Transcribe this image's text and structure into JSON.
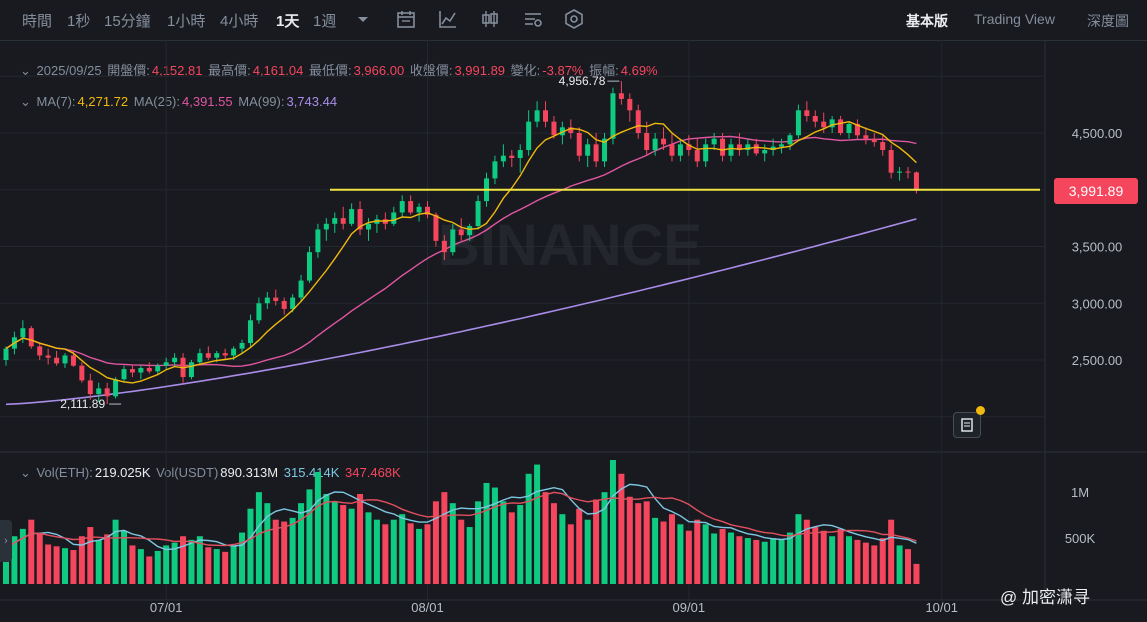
{
  "toolbar": {
    "timeframes": [
      "時間",
      "1秒",
      "15分鐘",
      "1小時",
      "4小時",
      "1天",
      "1週"
    ],
    "active_timeframe": "1天",
    "views": [
      "基本版",
      "Trading View",
      "深度圖"
    ],
    "active_view": "基本版"
  },
  "ohlc": {
    "date": "2025/09/25",
    "open_label": "開盤價:",
    "open": "4,152.81",
    "high_label": "最高價:",
    "high": "4,161.04",
    "low_label": "最低價:",
    "low": "3,966.00",
    "close_label": "收盤價:",
    "close": "3,991.89",
    "change_label": "變化:",
    "change": "-3.87%",
    "amplitude_label": "振幅:",
    "amplitude": "4.69%"
  },
  "ma": {
    "ma7_label": "MA(7):",
    "ma7": "4,271.72",
    "ma25_label": "MA(25):",
    "ma25": "4,391.55",
    "ma99_label": "MA(99):",
    "ma99": "3,743.44"
  },
  "vol": {
    "eth_label": "Vol(ETH):",
    "eth": "219.025K",
    "usdt_label": "Vol(USDT)",
    "usdt": "890.313M",
    "ma1": "315.414K",
    "ma2": "347.468K"
  },
  "watermark_text": "BINANCE",
  "credit": "@ 加密潇寻",
  "colors": {
    "up": "#0ecb81",
    "down": "#f6465d",
    "ma7": "#f0b90b",
    "ma25": "#e056a0",
    "ma99": "#a98ce8",
    "level": "#f0e442",
    "vol_ma1": "#7ec8e3",
    "vol_ma2": "#e0505e"
  },
  "chart_data": {
    "type": "candlestick",
    "symbol_note": "ETH/USDT daily",
    "y_ticks": [
      "4,500.00",
      "3,500.00",
      "3,000.00",
      "2,500.00"
    ],
    "y_tick_values": [
      4500,
      3500,
      3000,
      2500
    ],
    "ylim": [
      2000,
      5150
    ],
    "x_ticks": [
      "07/01",
      "08/01",
      "09/01",
      "10/01"
    ],
    "x_tick_index": [
      19,
      50,
      81,
      111
    ],
    "current_price": "3,991.89",
    "horizontal_level": 4000,
    "high_marker": "4,956.78",
    "high_marker_index": 73,
    "low_marker": "2,111.89",
    "low_marker_index": 12,
    "vol_ticks": [
      "1M",
      "500K"
    ],
    "vol_tick_values": [
      1000000,
      500000
    ],
    "vol_max": 1350000,
    "candles": [
      [
        2500,
        2620,
        2450,
        2600,
        380000
      ],
      [
        2600,
        2750,
        2550,
        2700,
        520000
      ],
      [
        2700,
        2850,
        2650,
        2780,
        600000
      ],
      [
        2780,
        2800,
        2600,
        2620,
        700000
      ],
      [
        2620,
        2650,
        2500,
        2540,
        560000
      ],
      [
        2540,
        2600,
        2460,
        2520,
        430000
      ],
      [
        2520,
        2580,
        2450,
        2470,
        410000
      ],
      [
        2470,
        2560,
        2430,
        2540,
        390000
      ],
      [
        2540,
        2580,
        2440,
        2450,
        370000
      ],
      [
        2450,
        2480,
        2300,
        2320,
        520000
      ],
      [
        2320,
        2380,
        2150,
        2200,
        620000
      ],
      [
        2200,
        2300,
        2130,
        2250,
        480000
      ],
      [
        2250,
        2300,
        2112,
        2180,
        540000
      ],
      [
        2180,
        2350,
        2160,
        2330,
        700000
      ],
      [
        2330,
        2450,
        2300,
        2420,
        580000
      ],
      [
        2420,
        2460,
        2350,
        2390,
        420000
      ],
      [
        2390,
        2450,
        2330,
        2430,
        380000
      ],
      [
        2430,
        2480,
        2380,
        2400,
        300000
      ],
      [
        2400,
        2470,
        2370,
        2450,
        360000
      ],
      [
        2450,
        2520,
        2420,
        2480,
        420000
      ],
      [
        2480,
        2560,
        2450,
        2520,
        450000
      ],
      [
        2520,
        2560,
        2300,
        2350,
        520000
      ],
      [
        2350,
        2500,
        2330,
        2480,
        480000
      ],
      [
        2480,
        2600,
        2460,
        2560,
        520000
      ],
      [
        2560,
        2620,
        2500,
        2520,
        400000
      ],
      [
        2520,
        2580,
        2480,
        2560,
        380000
      ],
      [
        2560,
        2600,
        2500,
        2540,
        350000
      ],
      [
        2540,
        2620,
        2500,
        2600,
        420000
      ],
      [
        2600,
        2680,
        2560,
        2650,
        560000
      ],
      [
        2650,
        2900,
        2620,
        2850,
        820000
      ],
      [
        2850,
        3050,
        2820,
        3000,
        1000000
      ],
      [
        3000,
        3100,
        2950,
        3050,
        880000
      ],
      [
        3050,
        3120,
        2980,
        3020,
        700000
      ],
      [
        3020,
        3050,
        2900,
        2950,
        680000
      ],
      [
        2950,
        3080,
        2920,
        3050,
        720000
      ],
      [
        3050,
        3250,
        3020,
        3200,
        880000
      ],
      [
        3200,
        3500,
        3180,
        3450,
        1030000
      ],
      [
        3450,
        3700,
        3400,
        3650,
        1220000
      ],
      [
        3650,
        3750,
        3550,
        3700,
        980000
      ],
      [
        3700,
        3800,
        3620,
        3750,
        900000
      ],
      [
        3750,
        3850,
        3650,
        3700,
        860000
      ],
      [
        3700,
        3880,
        3680,
        3830,
        820000
      ],
      [
        3830,
        3900,
        3600,
        3650,
        980000
      ],
      [
        3650,
        3750,
        3550,
        3700,
        780000
      ],
      [
        3700,
        3780,
        3620,
        3740,
        700000
      ],
      [
        3740,
        3800,
        3650,
        3700,
        650000
      ],
      [
        3700,
        3850,
        3680,
        3800,
        700000
      ],
      [
        3800,
        3950,
        3750,
        3900,
        760000
      ],
      [
        3900,
        3950,
        3780,
        3800,
        660000
      ],
      [
        3800,
        3880,
        3720,
        3850,
        600000
      ],
      [
        3850,
        3900,
        3750,
        3780,
        650000
      ],
      [
        3780,
        3800,
        3500,
        3550,
        900000
      ],
      [
        3550,
        3600,
        3380,
        3450,
        1000000
      ],
      [
        3450,
        3700,
        3420,
        3650,
        880000
      ],
      [
        3650,
        3750,
        3550,
        3600,
        700000
      ],
      [
        3600,
        3700,
        3550,
        3680,
        620000
      ],
      [
        3680,
        3950,
        3650,
        3900,
        900000
      ],
      [
        3900,
        4150,
        3850,
        4100,
        1100000
      ],
      [
        4100,
        4300,
        4050,
        4250,
        1050000
      ],
      [
        4250,
        4400,
        4200,
        4300,
        900000
      ],
      [
        4300,
        4350,
        4200,
        4280,
        780000
      ],
      [
        4280,
        4400,
        4150,
        4350,
        860000
      ],
      [
        4350,
        4700,
        4300,
        4600,
        1200000
      ],
      [
        4600,
        4780,
        4550,
        4700,
        1300000
      ],
      [
        4700,
        4780,
        4550,
        4600,
        1000000
      ],
      [
        4600,
        4650,
        4450,
        4480,
        880000
      ],
      [
        4480,
        4600,
        4400,
        4550,
        760000
      ],
      [
        4550,
        4620,
        4450,
        4500,
        650000
      ],
      [
        4500,
        4550,
        4250,
        4300,
        820000
      ],
      [
        4300,
        4450,
        4200,
        4400,
        700000
      ],
      [
        4400,
        4500,
        4200,
        4250,
        920000
      ],
      [
        4250,
        4500,
        4200,
        4450,
        1000000
      ],
      [
        4450,
        4900,
        4400,
        4850,
        1350000
      ],
      [
        4850,
        4957,
        4750,
        4800,
        1200000
      ],
      [
        4800,
        4850,
        4600,
        4700,
        950000
      ],
      [
        4700,
        4750,
        4450,
        4500,
        880000
      ],
      [
        4500,
        4600,
        4300,
        4350,
        900000
      ],
      [
        4350,
        4500,
        4300,
        4450,
        720000
      ],
      [
        4450,
        4550,
        4350,
        4400,
        680000
      ],
      [
        4400,
        4500,
        4250,
        4300,
        760000
      ],
      [
        4300,
        4450,
        4250,
        4400,
        650000
      ],
      [
        4400,
        4480,
        4300,
        4350,
        580000
      ],
      [
        4350,
        4450,
        4200,
        4250,
        700000
      ],
      [
        4250,
        4450,
        4200,
        4400,
        650000
      ],
      [
        4400,
        4500,
        4350,
        4450,
        550000
      ],
      [
        4450,
        4500,
        4250,
        4300,
        600000
      ],
      [
        4300,
        4450,
        4250,
        4400,
        560000
      ],
      [
        4400,
        4500,
        4300,
        4350,
        520000
      ],
      [
        4350,
        4450,
        4300,
        4400,
        500000
      ],
      [
        4400,
        4450,
        4300,
        4320,
        480000
      ],
      [
        4320,
        4400,
        4250,
        4350,
        460000
      ],
      [
        4350,
        4450,
        4300,
        4380,
        500000
      ],
      [
        4380,
        4450,
        4320,
        4400,
        480000
      ],
      [
        4400,
        4500,
        4350,
        4480,
        560000
      ],
      [
        4480,
        4750,
        4450,
        4700,
        760000
      ],
      [
        4700,
        4780,
        4600,
        4650,
        700000
      ],
      [
        4650,
        4700,
        4550,
        4600,
        620000
      ],
      [
        4600,
        4680,
        4500,
        4550,
        580000
      ],
      [
        4550,
        4650,
        4500,
        4620,
        520000
      ],
      [
        4620,
        4650,
        4480,
        4500,
        600000
      ],
      [
        4500,
        4600,
        4450,
        4580,
        520000
      ],
      [
        4580,
        4620,
        4450,
        4480,
        480000
      ],
      [
        4480,
        4550,
        4400,
        4450,
        450000
      ],
      [
        4450,
        4500,
        4380,
        4420,
        420000
      ],
      [
        4420,
        4480,
        4300,
        4350,
        500000
      ],
      [
        4350,
        4400,
        4100,
        4150,
        700000
      ],
      [
        4150,
        4200,
        4080,
        4160,
        420000
      ],
      [
        4160,
        4200,
        4100,
        4153,
        380000
      ],
      [
        4153,
        4161,
        3966,
        3992,
        219025
      ]
    ]
  }
}
